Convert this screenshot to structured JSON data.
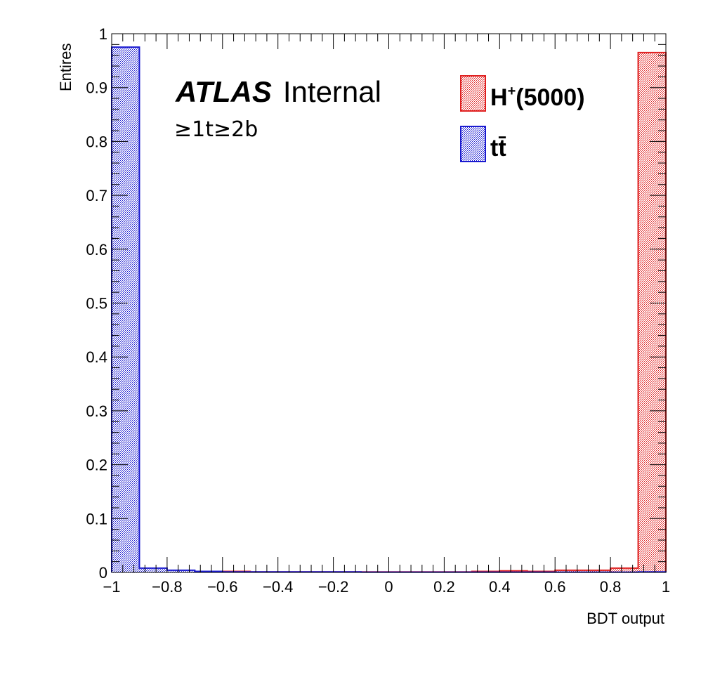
{
  "chart_data": {
    "type": "histogram",
    "xlabel": "BDT output",
    "ylabel": "Entires",
    "xlim": [
      -1,
      1
    ],
    "ylim": [
      0,
      1
    ],
    "xticks": [
      -1,
      -0.8,
      -0.6,
      -0.4,
      -0.2,
      0,
      0.2,
      0.4,
      0.6,
      0.8,
      1
    ],
    "xtick_labels": [
      "−1",
      "−0.8",
      "−0.6",
      "−0.4",
      "−0.2",
      "0",
      "0.2",
      "0.4",
      "0.6",
      "0.8",
      "1"
    ],
    "yticks": [
      0,
      0.1,
      0.2,
      0.3,
      0.4,
      0.5,
      0.6,
      0.7,
      0.8,
      0.9,
      1
    ],
    "ytick_labels": [
      "0",
      "0.1",
      "0.2",
      "0.3",
      "0.4",
      "0.5",
      "0.6",
      "0.7",
      "0.8",
      "0.9",
      "1"
    ],
    "bin_edges": [
      -1,
      -0.9,
      -0.8,
      -0.7,
      -0.6,
      -0.5,
      -0.4,
      -0.3,
      -0.2,
      -0.1,
      0,
      0.1,
      0.2,
      0.3,
      0.4,
      0.5,
      0.6,
      0.7,
      0.8,
      0.9,
      1
    ],
    "series": [
      {
        "name_main": "H",
        "name_sup": "+",
        "name_rest": "(5000)",
        "color": "#e02020",
        "values": [
          0.004,
          0.004,
          0.003,
          0.002,
          0.002,
          0.001,
          0.001,
          0.001,
          0.001,
          0.001,
          0.001,
          0.001,
          0.001,
          0.002,
          0.003,
          0.002,
          0.004,
          0.004,
          0.008,
          0.965
        ]
      },
      {
        "name_main": "t",
        "name_rest": "t̄",
        "color": "#1a1ad0",
        "values": [
          0.975,
          0.008,
          0.004,
          0.002,
          0.001,
          0.001,
          0.001,
          0.001,
          0.001,
          0.0005,
          0.0005,
          0.0005,
          0.0005,
          0.0005,
          0.0005,
          0.0005,
          0.0005,
          0.0005,
          0.0005,
          0.001
        ]
      }
    ],
    "annotation": {
      "atlas": "ATLAS",
      "internal": "Internal",
      "region": "≥1t≥2b"
    },
    "legend_position": "top-right",
    "grid": false
  }
}
